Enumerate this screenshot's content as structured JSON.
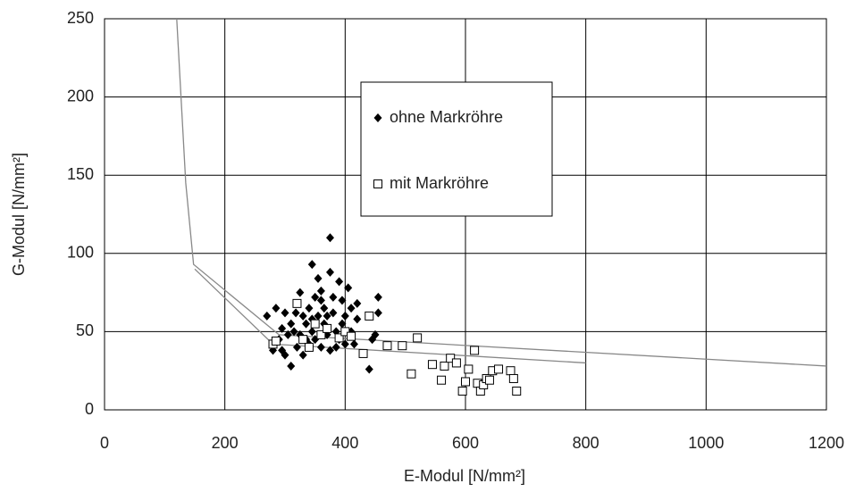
{
  "chart_data": {
    "type": "scatter",
    "xlabel": "E-Modul [N/mm²]",
    "ylabel": "G-Modul [N/mm²]",
    "xlim": [
      0,
      1200
    ],
    "xticks": [
      0,
      200,
      400,
      600,
      800,
      1000,
      1200
    ],
    "ylim": [
      0,
      250
    ],
    "yticks": [
      0,
      50,
      100,
      150,
      200,
      250
    ],
    "grid": true,
    "series": [
      {
        "name": "ohne Markröhre",
        "color": "#000000",
        "marker": "diamond",
        "x": [
          375,
          345,
          375,
          355,
          390,
          325,
          360,
          405,
          395,
          420,
          455,
          270,
          285,
          300,
          310,
          315,
          290,
          295,
          300,
          280,
          310,
          320,
          330,
          335,
          340,
          345,
          350,
          355,
          360,
          365,
          370,
          375,
          380,
          385,
          390,
          395,
          400,
          410,
          415,
          420,
          440,
          450,
          455,
          445,
          360,
          340,
          325,
          305,
          295,
          350,
          365,
          330,
          385,
          400,
          410,
          380,
          345,
          318,
          370,
          335
        ],
        "values": [
          110,
          93,
          88,
          84,
          82,
          75,
          76,
          78,
          70,
          68,
          72,
          60,
          65,
          62,
          55,
          50,
          45,
          38,
          35,
          38,
          28,
          40,
          60,
          55,
          65,
          50,
          45,
          60,
          70,
          55,
          48,
          38,
          62,
          50,
          45,
          55,
          60,
          50,
          42,
          58,
          26,
          48,
          62,
          45,
          40,
          42,
          48,
          48,
          52,
          72,
          65,
          35,
          40,
          42,
          65,
          72,
          58,
          62,
          60,
          45
        ]
      },
      {
        "name": "mit Markröhre",
        "color": "#000000",
        "marker": "square",
        "x": [
          280,
          285,
          320,
          330,
          340,
          350,
          360,
          370,
          390,
          400,
          410,
          430,
          440,
          470,
          495,
          510,
          520,
          545,
          560,
          565,
          575,
          585,
          595,
          600,
          605,
          615,
          620,
          625,
          630,
          635,
          640,
          645,
          655,
          675,
          680,
          685
        ],
        "values": [
          42,
          44,
          68,
          45,
          40,
          55,
          48,
          52,
          46,
          50,
          47,
          36,
          60,
          41,
          41,
          23,
          46,
          29,
          19,
          28,
          33,
          30,
          12,
          18,
          26,
          38,
          17,
          12,
          16,
          20,
          19,
          25,
          26,
          25,
          20,
          12
        ]
      },
      {
        "color": "#888888",
        "marker": "none",
        "x": [
          120,
          135,
          148,
          290,
          1200
        ],
        "values": [
          250,
          145,
          93,
          48,
          28
        ]
      },
      {
        "color": "#888888",
        "marker": "none",
        "x": [
          150,
          280,
          800
        ],
        "values": [
          90,
          42,
          30
        ]
      }
    ]
  }
}
